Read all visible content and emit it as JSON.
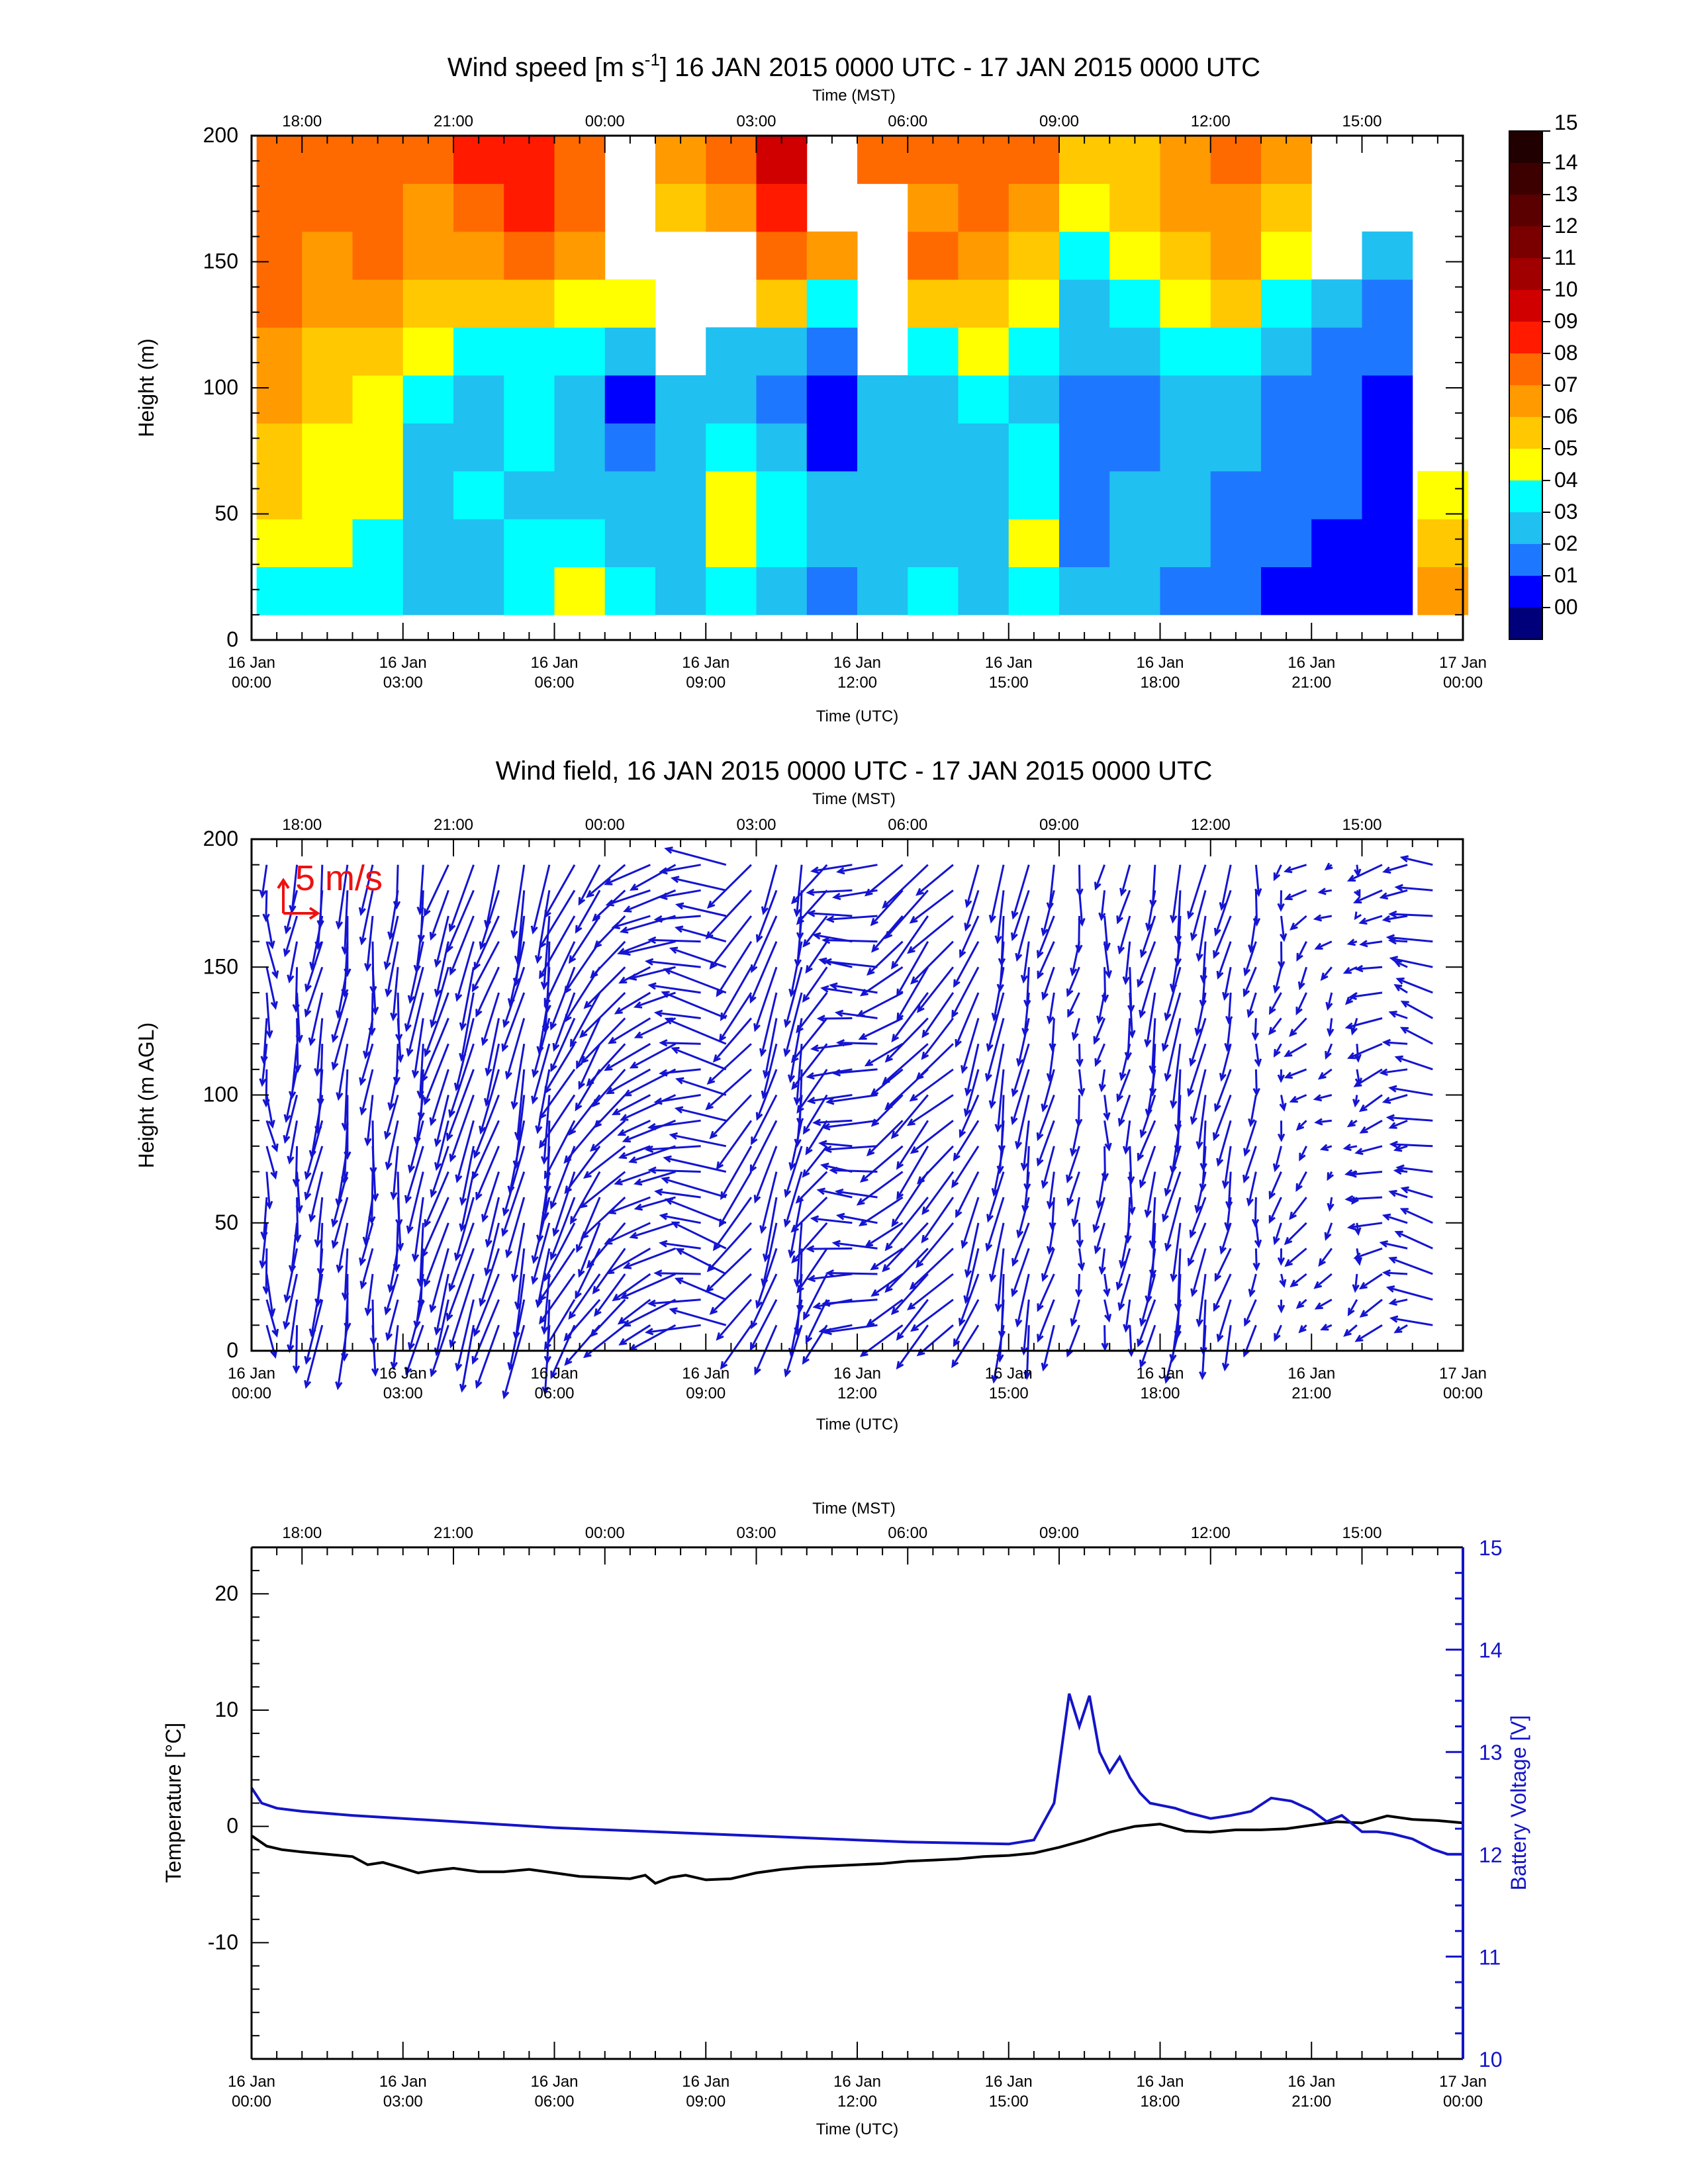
{
  "chart_data": [
    {
      "type": "heatmap",
      "title": "Wind speed [m s",
      "title_sup": "-1",
      "title_rest": "] 16 JAN 2015 0000 UTC - 17 JAN 2015 0000 UTC",
      "xlabel": "Time (UTC)",
      "x2label": "Time (MST)",
      "ylabel": "Height (m)",
      "xlim": [
        0,
        24
      ],
      "ylim": [
        0,
        200
      ],
      "xticks": [
        0,
        3,
        6,
        9,
        12,
        15,
        18,
        21,
        24
      ],
      "xtick_labels_top": [
        "16 Jan",
        "16 Jan",
        "16 Jan",
        "16 Jan",
        "16 Jan",
        "16 Jan",
        "16 Jan",
        "16 Jan",
        "17 Jan"
      ],
      "xtick_labels_bottom": [
        "00:00",
        "03:00",
        "06:00",
        "09:00",
        "12:00",
        "15:00",
        "18:00",
        "21:00",
        "00:00"
      ],
      "mst_ticks": [
        1,
        4,
        7,
        10,
        13,
        16,
        19,
        22
      ],
      "mst_labels": [
        "18:00",
        "21:00",
        "00:00",
        "03:00",
        "06:00",
        "09:00",
        "12:00",
        "15:00"
      ],
      "yticks": [
        0,
        50,
        100,
        150,
        200
      ],
      "ytick_labels": [
        "0",
        "50",
        "100",
        "150",
        "200"
      ],
      "colorbar_labels": [
        "15",
        "14",
        "13",
        "12",
        "11",
        "10",
        "09",
        "08",
        "07",
        "06",
        "05",
        "04",
        "03",
        "02",
        "01",
        "00"
      ],
      "colorbar_colors": [
        "#200000",
        "#3c0000",
        "#5a0000",
        "#7a0000",
        "#a00000",
        "#d00000",
        "#ff1a00",
        "#ff6a00",
        "#ff9a00",
        "#ffc800",
        "#ffff00",
        "#00ffff",
        "#20c0f0",
        "#1e78ff",
        "#0000ff",
        "#00007a"
      ],
      "columns": [
        {
          "t": 0.6,
          "v": [
            4,
            5,
            6,
            6,
            7,
            7,
            8,
            8,
            8,
            8
          ]
        },
        {
          "t": 1.5,
          "v": [
            4,
            5,
            5,
            5,
            6,
            6,
            7,
            7,
            8,
            8
          ]
        },
        {
          "t": 2.5,
          "v": [
            4,
            4,
            5,
            5,
            5,
            6,
            7,
            8,
            8,
            8
          ]
        },
        {
          "t": 3.5,
          "v": [
            3,
            3,
            3,
            3,
            4,
            5,
            6,
            7,
            7,
            8
          ]
        },
        {
          "t": 4.5,
          "v": [
            3,
            3,
            4,
            3,
            3,
            4,
            6,
            7,
            8,
            9
          ]
        },
        {
          "t": 5.5,
          "v": [
            4,
            4,
            3,
            4,
            4,
            4,
            6,
            8,
            9,
            9
          ]
        },
        {
          "t": 6.5,
          "v": [
            5,
            4,
            3,
            3,
            3,
            4,
            5,
            7,
            8,
            8
          ]
        },
        {
          "t": 7.5,
          "v": [
            4,
            3,
            3,
            2,
            1,
            3,
            5,
            null,
            null,
            null
          ]
        },
        {
          "t": 8.5,
          "v": [
            3,
            3,
            3,
            3,
            3,
            null,
            null,
            null,
            6,
            7
          ]
        },
        {
          "t": 9.5,
          "v": [
            4,
            5,
            5,
            4,
            3,
            3,
            null,
            null,
            7,
            8
          ]
        },
        {
          "t": 10.5,
          "v": [
            3,
            4,
            4,
            3,
            2,
            3,
            6,
            8,
            9,
            10
          ]
        },
        {
          "t": 11.5,
          "v": [
            2,
            3,
            3,
            1,
            1,
            2,
            4,
            7,
            null,
            null
          ]
        },
        {
          "t": 12.5,
          "v": [
            3,
            3,
            3,
            3,
            3,
            null,
            null,
            null,
            null,
            8
          ]
        },
        {
          "t": 13.5,
          "v": [
            4,
            3,
            3,
            3,
            3,
            4,
            6,
            8,
            7,
            8
          ]
        },
        {
          "t": 14.5,
          "v": [
            3,
            3,
            3,
            3,
            4,
            5,
            6,
            7,
            8,
            8
          ]
        },
        {
          "t": 15.5,
          "v": [
            4,
            5,
            4,
            4,
            3,
            4,
            5,
            6,
            7,
            8
          ]
        },
        {
          "t": 16.5,
          "v": [
            3,
            2,
            2,
            2,
            2,
            3,
            3,
            4,
            5,
            6
          ]
        },
        {
          "t": 17.5,
          "v": [
            3,
            3,
            3,
            2,
            2,
            3,
            4,
            5,
            6,
            6
          ]
        },
        {
          "t": 18.5,
          "v": [
            2,
            3,
            3,
            3,
            3,
            4,
            5,
            6,
            7,
            7
          ]
        },
        {
          "t": 19.5,
          "v": [
            2,
            2,
            2,
            3,
            3,
            4,
            6,
            7,
            7,
            8
          ]
        },
        {
          "t": 20.5,
          "v": [
            1,
            2,
            2,
            2,
            2,
            3,
            4,
            5,
            6,
            7
          ]
        },
        {
          "t": 21.5,
          "v": [
            1,
            1,
            2,
            2,
            2,
            2,
            3,
            null,
            null,
            null
          ]
        },
        {
          "t": 22.5,
          "v": [
            1,
            1,
            1,
            1,
            1,
            2,
            2,
            3,
            null,
            null
          ]
        },
        {
          "t": 23.6,
          "v": [
            7,
            6,
            5,
            null,
            null,
            null,
            null,
            null,
            null,
            null
          ]
        }
      ]
    },
    {
      "type": "scatter",
      "title": "Wind field, 16 JAN 2015 0000 UTC - 17 JAN 2015 0000 UTC",
      "xlabel": "Time (UTC)",
      "x2label": "Time (MST)",
      "ylabel": "Height (m AGL)",
      "scale_label": "5 m/s",
      "xlim": [
        0,
        24
      ],
      "ylim": [
        0,
        200
      ],
      "yticks": [
        0,
        50,
        100,
        150,
        200
      ],
      "ytick_labels": [
        "0",
        "50",
        "100",
        "150",
        "200"
      ],
      "vector_columns": [
        {
          "t": 0.3,
          "u": 0.3,
          "v": -4
        },
        {
          "t": 0.9,
          "u": -0.5,
          "v": -5
        },
        {
          "t": 1.4,
          "u": -1,
          "v": -6
        },
        {
          "t": 1.9,
          "u": -0.8,
          "v": -6
        },
        {
          "t": 2.4,
          "u": -0.5,
          "v": -5
        },
        {
          "t": 2.9,
          "u": -0.5,
          "v": -5
        },
        {
          "t": 3.4,
          "u": -1,
          "v": -6
        },
        {
          "t": 3.9,
          "u": -2,
          "v": -6
        },
        {
          "t": 4.4,
          "u": -2,
          "v": -7
        },
        {
          "t": 4.9,
          "u": -2,
          "v": -6
        },
        {
          "t": 5.4,
          "u": -1.5,
          "v": -7
        },
        {
          "t": 5.9,
          "u": -1,
          "v": -7
        },
        {
          "t": 6.4,
          "u": -3,
          "v": -6
        },
        {
          "t": 6.9,
          "u": -3,
          "v": -5
        },
        {
          "t": 7.4,
          "u": -4,
          "v": -4
        },
        {
          "t": 7.9,
          "u": -4,
          "v": -2
        },
        {
          "t": 8.4,
          "u": -5,
          "v": -2
        },
        {
          "t": 8.9,
          "u": -5,
          "v": 0
        },
        {
          "t": 9.4,
          "u": -6,
          "v": 2
        },
        {
          "t": 9.9,
          "u": -4,
          "v": -5
        },
        {
          "t": 10.4,
          "u": -2,
          "v": -6
        },
        {
          "t": 10.9,
          "u": -1,
          "v": -6
        },
        {
          "t": 11.4,
          "u": -3,
          "v": -4
        },
        {
          "t": 11.9,
          "u": -4,
          "v": 0
        },
        {
          "t": 12.4,
          "u": -5,
          "v": 0
        },
        {
          "t": 12.9,
          "u": -4,
          "v": -3
        },
        {
          "t": 13.4,
          "u": -4,
          "v": -5
        },
        {
          "t": 13.9,
          "u": -4,
          "v": -4
        },
        {
          "t": 14.4,
          "u": -2,
          "v": -5
        },
        {
          "t": 14.9,
          "u": -1,
          "v": -6
        },
        {
          "t": 15.4,
          "u": -1,
          "v": -5
        },
        {
          "t": 15.9,
          "u": -1,
          "v": -4
        },
        {
          "t": 16.4,
          "u": -0.5,
          "v": -3
        },
        {
          "t": 16.9,
          "u": -0.3,
          "v": -3
        },
        {
          "t": 17.4,
          "u": -0.5,
          "v": -4
        },
        {
          "t": 17.9,
          "u": -1,
          "v": -5
        },
        {
          "t": 18.4,
          "u": -1,
          "v": -6
        },
        {
          "t": 18.9,
          "u": -1,
          "v": -5
        },
        {
          "t": 19.4,
          "u": -1,
          "v": -4
        },
        {
          "t": 19.9,
          "u": -0.5,
          "v": -3
        },
        {
          "t": 20.4,
          "u": -0.5,
          "v": -2
        },
        {
          "t": 20.9,
          "u": -1.5,
          "v": -1.5
        },
        {
          "t": 21.4,
          "u": -1,
          "v": -1
        },
        {
          "t": 21.9,
          "u": -0.5,
          "v": -1
        },
        {
          "t": 22.4,
          "u": -3,
          "v": -1
        },
        {
          "t": 22.9,
          "u": -2,
          "v": 0
        },
        {
          "t": 23.4,
          "u": -4,
          "v": 1
        }
      ]
    },
    {
      "type": "line",
      "xlabel": "Time (UTC)",
      "x2label": "Time (MST)",
      "ylabel": "Temperature [°C]",
      "y2label": "Battery Voltage [V]",
      "xlim": [
        0,
        24
      ],
      "ylim": [
        -20,
        24
      ],
      "y2lim": [
        10,
        15
      ],
      "yticks": [
        -10,
        0,
        10,
        20
      ],
      "ytick_labels": [
        "-10",
        "0",
        "10",
        "20"
      ],
      "y2ticks": [
        10,
        11,
        12,
        13,
        14,
        15
      ],
      "y2tick_labels": [
        "10",
        "11",
        "12",
        "13",
        "14",
        "15"
      ],
      "colors": {
        "temperature": "#000000",
        "voltage": "#1414c8"
      },
      "series": [
        {
          "name": "Temperature",
          "axis": "left",
          "x": [
            0,
            0.3,
            0.6,
            1,
            1.5,
            2,
            2.3,
            2.6,
            3,
            3.3,
            3.6,
            4,
            4.5,
            5,
            5.5,
            6,
            6.5,
            7,
            7.5,
            7.8,
            8,
            8.3,
            8.6,
            9,
            9.5,
            10,
            10.5,
            11,
            11.5,
            12,
            12.5,
            13,
            13.5,
            14,
            14.5,
            15,
            15.5,
            16,
            16.5,
            17,
            17.5,
            18,
            18.5,
            19,
            19.5,
            20,
            20.5,
            21,
            21.5,
            22,
            22.5,
            23,
            23.5,
            24
          ],
          "y": [
            -0.8,
            -1.7,
            -2,
            -2.2,
            -2.4,
            -2.6,
            -3.3,
            -3.1,
            -3.6,
            -4,
            -3.8,
            -3.6,
            -3.9,
            -3.9,
            -3.7,
            -4.0,
            -4.3,
            -4.4,
            -4.5,
            -4.2,
            -4.9,
            -4.4,
            -4.2,
            -4.6,
            -4.5,
            -4.0,
            -3.7,
            -3.5,
            -3.4,
            -3.3,
            -3.2,
            -3.0,
            -2.9,
            -2.8,
            -2.6,
            -2.5,
            -2.3,
            -1.8,
            -1.2,
            -0.5,
            0,
            0.2,
            -0.4,
            -0.5,
            -0.3,
            -0.3,
            -0.2,
            0.1,
            0.4,
            0.3,
            0.9,
            0.6,
            0.5,
            0.3
          ]
        },
        {
          "name": "Battery Voltage",
          "axis": "right",
          "x": [
            0,
            0.2,
            0.5,
            1,
            2,
            3,
            4,
            5,
            6,
            7,
            8,
            9,
            10,
            11,
            12,
            13,
            14,
            15,
            15.5,
            15.9,
            16.2,
            16.4,
            16.6,
            16.8,
            17,
            17.2,
            17.4,
            17.6,
            17.8,
            18,
            18.3,
            18.6,
            19,
            19.4,
            19.8,
            20.2,
            20.6,
            21,
            21.3,
            21.6,
            21.8,
            22,
            22.3,
            22.6,
            23,
            23.4,
            23.7,
            24
          ],
          "y": [
            12.65,
            12.5,
            12.45,
            12.42,
            12.38,
            12.35,
            12.32,
            12.29,
            12.26,
            12.24,
            12.22,
            12.2,
            12.18,
            12.16,
            12.14,
            12.12,
            12.11,
            12.1,
            12.14,
            12.5,
            13.57,
            13.25,
            13.55,
            13.0,
            12.8,
            12.95,
            12.75,
            12.6,
            12.5,
            12.48,
            12.45,
            12.4,
            12.35,
            12.38,
            12.42,
            12.55,
            12.52,
            12.43,
            12.32,
            12.38,
            12.3,
            12.22,
            12.22,
            12.2,
            12.15,
            12.05,
            12.0,
            12.0
          ]
        }
      ]
    }
  ]
}
